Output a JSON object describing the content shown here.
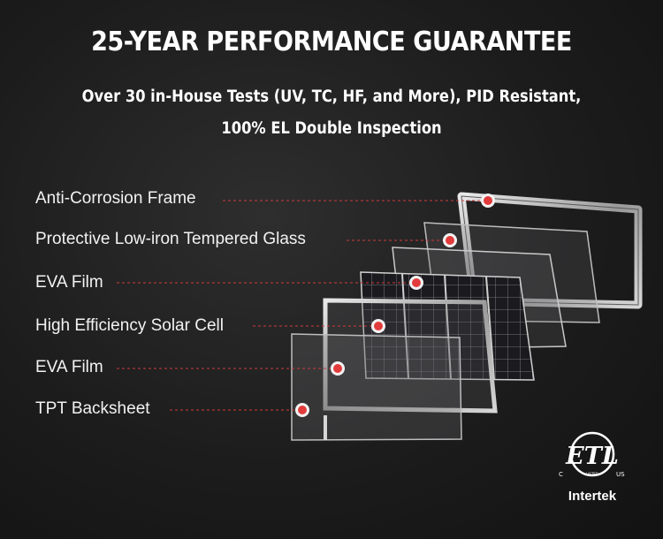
{
  "header": {
    "title": "25-YEAR PERFORMANCE GUARANTEE",
    "subtitle_line1": "Over 30 in-House Tests (UV, TC, HF, and More), PID Resistant,",
    "subtitle_line2": "100% EL Double Inspection"
  },
  "layers": [
    {
      "label": "Anti-Corrosion Frame"
    },
    {
      "label": "Protective Low-iron Tempered Glass"
    },
    {
      "label": "EVA Film"
    },
    {
      "label": "High Efficiency Solar Cell"
    },
    {
      "label": "EVA Film"
    },
    {
      "label": "TPT Backsheet"
    }
  ],
  "certification": {
    "mark": "ETL",
    "left_letter": "C",
    "right_letters": "US",
    "small_text": "LISTED",
    "brand": "Intertek"
  },
  "colors": {
    "leader_line": "#d23a3a",
    "marker_dot": "#e23b3b"
  }
}
